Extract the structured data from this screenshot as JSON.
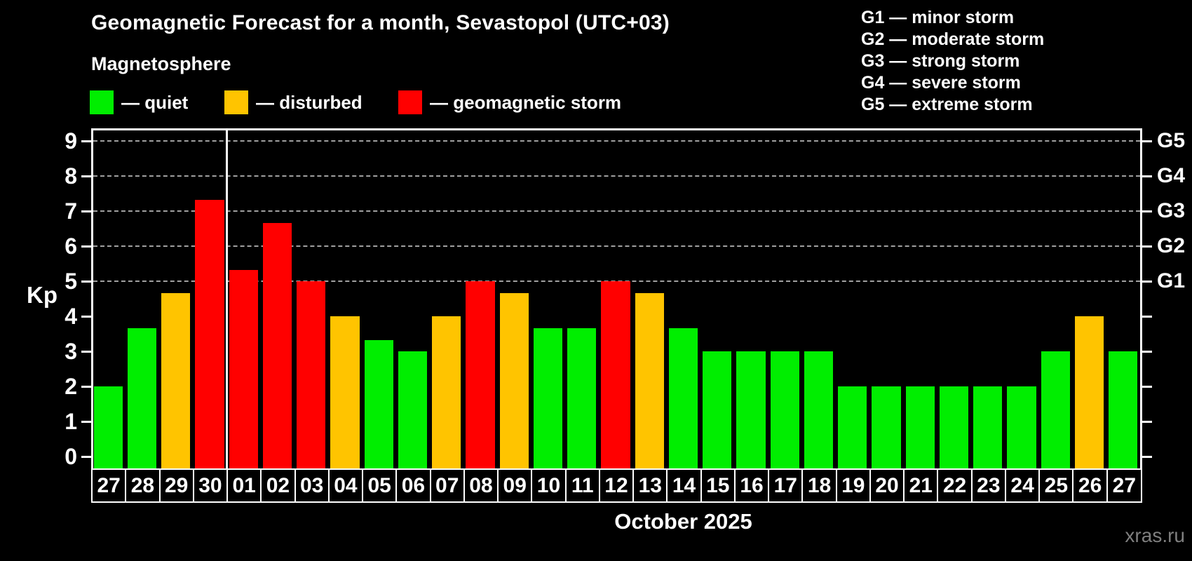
{
  "title": "Geomagnetic Forecast for a month, Sevastopol (UTC+03)",
  "subtitle": "Magnetosphere",
  "legend": {
    "items": [
      {
        "key": "quiet",
        "label": "— quiet",
        "color": "#00ee00"
      },
      {
        "key": "disturbed",
        "label": "— disturbed",
        "color": "#ffc400"
      },
      {
        "key": "storm",
        "label": "— geomagnetic storm",
        "color": "#ff0000"
      }
    ]
  },
  "g_legend": {
    "items": [
      {
        "label": "G1 — minor storm"
      },
      {
        "label": "G2 — moderate storm"
      },
      {
        "label": "G3 — strong storm"
      },
      {
        "label": "G4 — severe storm"
      },
      {
        "label": "G5 — extreme storm"
      }
    ]
  },
  "chart_data": {
    "type": "bar",
    "title": "Geomagnetic Forecast for a month, Sevastopol (UTC+03)",
    "ylabel": "Kp",
    "xlabel": "October 2025",
    "ylim": [
      0,
      9.3
    ],
    "yticks": [
      0,
      1,
      2,
      3,
      4,
      5,
      6,
      7,
      8,
      9
    ],
    "gridlines_at": [
      5,
      6,
      7,
      8,
      9
    ],
    "grid": "dashed horizontal at Kp 5-9 only",
    "right_axis": [
      {
        "kp": 5,
        "label": "G1"
      },
      {
        "kp": 6,
        "label": "G2"
      },
      {
        "kp": 7,
        "label": "G3"
      },
      {
        "kp": 8,
        "label": "G4"
      },
      {
        "kp": 9,
        "label": "G5"
      }
    ],
    "month_separator_after_index": 3,
    "categories": [
      "27",
      "28",
      "29",
      "30",
      "01",
      "02",
      "03",
      "04",
      "05",
      "06",
      "07",
      "08",
      "09",
      "10",
      "11",
      "12",
      "13",
      "14",
      "15",
      "16",
      "17",
      "18",
      "19",
      "20",
      "21",
      "22",
      "23",
      "24",
      "25",
      "26",
      "27"
    ],
    "values": [
      2,
      3.67,
      4.67,
      7.33,
      5.33,
      6.67,
      5,
      4,
      3.33,
      3,
      4,
      5,
      4.67,
      3.67,
      3.67,
      5,
      4.67,
      3.67,
      3,
      3,
      3,
      3,
      2,
      2,
      2,
      2,
      2,
      2,
      3,
      4,
      3
    ],
    "statuses": [
      "quiet",
      "quiet",
      "disturbed",
      "storm",
      "storm",
      "storm",
      "storm",
      "disturbed",
      "quiet",
      "quiet",
      "disturbed",
      "storm",
      "disturbed",
      "quiet",
      "quiet",
      "storm",
      "disturbed",
      "quiet",
      "quiet",
      "quiet",
      "quiet",
      "quiet",
      "quiet",
      "quiet",
      "quiet",
      "quiet",
      "quiet",
      "quiet",
      "quiet",
      "disturbed",
      "quiet"
    ],
    "legend_position": "top-left"
  },
  "footer": {
    "month_label": "October 2025",
    "watermark": "xras.ru"
  },
  "colors": {
    "quiet": "#00ee00",
    "disturbed": "#ffc400",
    "storm": "#ff0000",
    "grid": "#a0a0a0",
    "axis": "#ffffff",
    "background": "#000000",
    "watermark": "#7f7f7f"
  }
}
